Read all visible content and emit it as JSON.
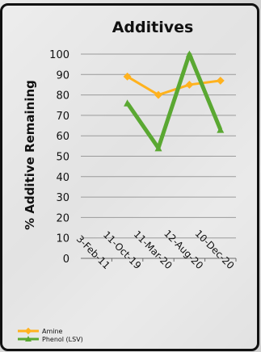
{
  "chart_data": {
    "type": "line",
    "title": "Additives",
    "xlabel": "",
    "ylabel": "% Additive Remaining",
    "categories": [
      "3-Feb-11",
      "11-Oct-19",
      "11-Mar-20",
      "12-Aug-20",
      "10-Dec-20"
    ],
    "ylim": [
      0,
      100
    ],
    "yticks": [
      0,
      10,
      20,
      30,
      40,
      50,
      60,
      70,
      80,
      90,
      100
    ],
    "grid": true,
    "legend_position": "bottom-left",
    "series": [
      {
        "name": "Amine",
        "color": "#ffb21e",
        "values": [
          null,
          89,
          80,
          85,
          87
        ]
      },
      {
        "name": "Phenol (LSV)",
        "color": "#5aa832",
        "values": [
          null,
          76,
          54,
          100,
          63
        ]
      }
    ]
  }
}
